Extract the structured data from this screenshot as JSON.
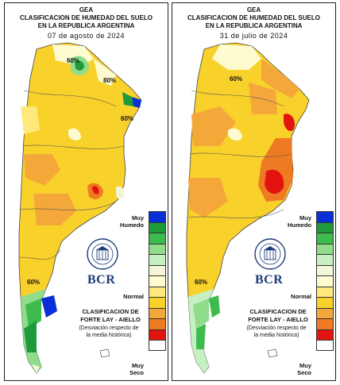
{
  "colors": {
    "muy_humedo": "#0a2fd6",
    "humedo_1": "#1f9a3a",
    "humedo_2": "#3dbb4d",
    "humedo_3": "#8fdc8b",
    "normal_1": "#c6f0c2",
    "normal_2": "#f3f7d8",
    "normal_3": "#fffbd0",
    "seco_1": "#ffe97a",
    "seco_2": "#f9d12b",
    "seco_3": "#f4a83a",
    "seco_4": "#ee7a23",
    "muy_seco": "#e3140f"
  },
  "left": {
    "gea": "GEA",
    "title_line1": "CLASIFICACION DE HUMEDAD DEL SUELO",
    "title_line2": "EN LA REPUBLICA ARGENTINA",
    "date": "07 de agosto de 2024",
    "legend_top": "Muy\nHumedo",
    "legend_mid": "Normal",
    "legend_bottom": "Muy\nSeco",
    "brand": "BCR",
    "class_line1": "CLASIFICACION DE",
    "class_line2": "FORTE LAY - AIELLO",
    "desc_line1": "(Desviación respecto de",
    "desc_line2": "la media histórica)",
    "contour_labels": [
      "60%",
      "80%",
      "60%",
      "60%"
    ]
  },
  "right": {
    "gea": "GEA",
    "title_line1": "CLASIFICACION DE HUMEDAD DEL SUELO",
    "title_line2": "EN LA REPUBLICA ARGENTINA",
    "date": "31 de julio de 2024",
    "legend_top": "Muy\nHumedo",
    "legend_mid": "Normal",
    "legend_bottom": "Muy\nSeco",
    "brand": "BCR",
    "class_line1": "CLASIFICACION DE",
    "class_line2": "FORTE LAY - AIELLO",
    "desc_line1": "(Desviación respecto de",
    "desc_line2": "la media histórica)",
    "contour_labels": [
      "60%",
      "60%"
    ]
  }
}
